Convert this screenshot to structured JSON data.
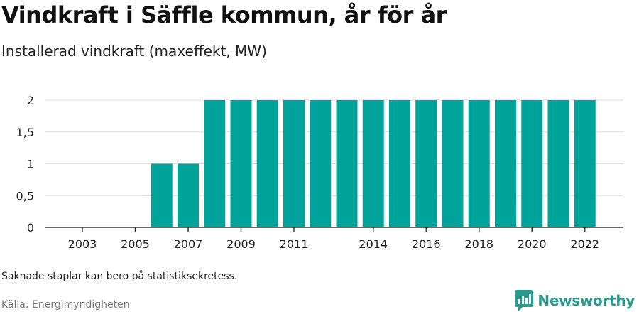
{
  "header": {
    "title": "Vindkraft i Säffle kommun, år för år",
    "subtitle": "Installerad vindkraft (maxeffekt, MW)"
  },
  "footer": {
    "note": "Saknade staplar kan bero på statistiksekretess.",
    "source": "Källa: Energimyndigheten",
    "brand": "Newsworthy"
  },
  "colors": {
    "bar": "#00a39a",
    "brand": "#2a9c8d",
    "grid": "#dddddd"
  },
  "icons": {
    "brand_logo": "bar-chart-speech-bubble-icon"
  },
  "chart_data": {
    "type": "bar",
    "categories": [
      "2003",
      "2004",
      "2005",
      "2006",
      "2007",
      "2008",
      "2009",
      "2010",
      "2011",
      "2012",
      "2013",
      "2014",
      "2015",
      "2016",
      "2017",
      "2018",
      "2019",
      "2020",
      "2021",
      "2022"
    ],
    "series": [
      {
        "values": [
          0,
          0,
          0,
          1,
          1,
          2,
          2,
          2,
          2,
          2,
          2,
          2,
          2,
          2,
          2,
          2,
          2,
          2,
          2,
          2
        ]
      }
    ],
    "x_tick_labels": [
      "2003",
      "",
      "2005",
      "",
      "2007",
      "",
      "2009",
      "",
      "2011",
      "",
      "",
      "2014",
      "",
      "2016",
      "",
      "2018",
      "",
      "2020",
      "",
      "2022"
    ],
    "y_ticks": [
      0,
      0.5,
      1,
      1.5,
      2
    ],
    "y_tick_labels": [
      "0",
      "0,5",
      "1",
      "1,5",
      "2"
    ],
    "ylim": [
      0,
      2
    ],
    "grid": true,
    "legend": "none"
  }
}
